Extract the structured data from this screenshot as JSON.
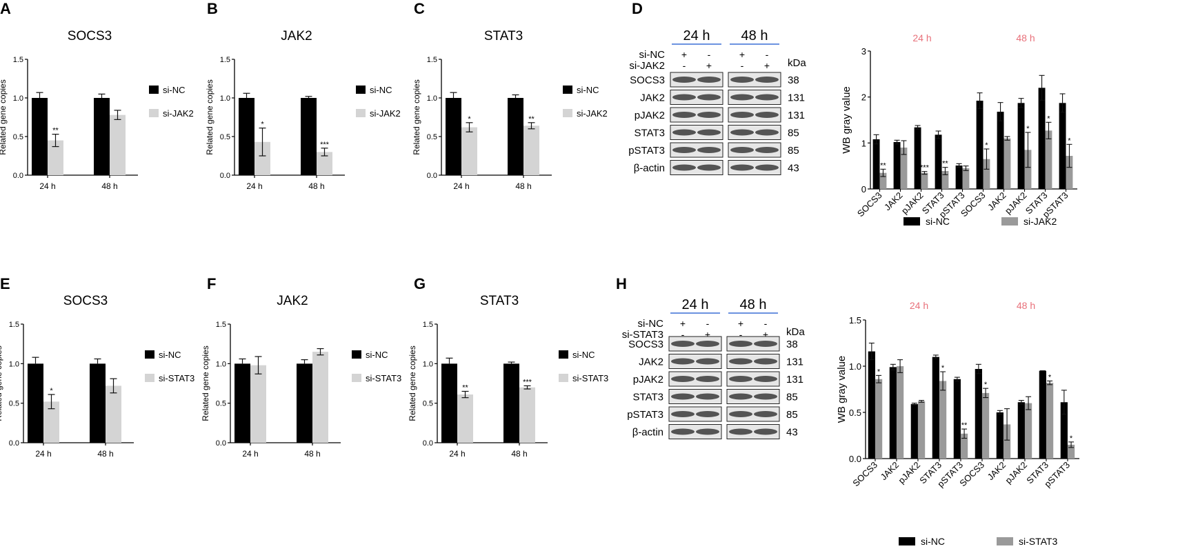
{
  "colors": {
    "si_nc": "#000000",
    "knockdown_qpcr": "#d4d4d4",
    "knockdown_wb": "#9a9a9a",
    "time_header_red": "#e8707a",
    "time_underline_blue": "#3a6ed6"
  },
  "top_row": {
    "legend_labels": [
      "si-NC",
      "si-JAK2"
    ],
    "blot": {
      "panel_letter": "D",
      "time_labels": [
        "24 h",
        "48 h"
      ],
      "condition_rows": [
        {
          "label": "si-NC",
          "marks": [
            "+",
            "-",
            "+",
            "-"
          ]
        },
        {
          "label": "si-JAK2",
          "marks": [
            "-",
            "+",
            "-",
            "+"
          ]
        }
      ],
      "kda_header": "kDa",
      "bands": [
        {
          "protein": "SOCS3",
          "kda": "38"
        },
        {
          "protein": "JAK2",
          "kda": "131"
        },
        {
          "protein": "pJAK2",
          "kda": "131"
        },
        {
          "protein": "STAT3",
          "kda": "85"
        },
        {
          "protein": "pSTAT3",
          "kda": "85"
        },
        {
          "protein": "β-actin",
          "kda": "43"
        }
      ]
    }
  },
  "bottom_row": {
    "legend_labels": [
      "si-NC",
      "si-STAT3"
    ],
    "blot": {
      "panel_letter": "H",
      "time_labels": [
        "24 h",
        "48 h"
      ],
      "condition_rows": [
        {
          "label": "si-NC",
          "marks": [
            "+",
            "-",
            "+",
            "-"
          ]
        },
        {
          "label": "si-STAT3",
          "marks": [
            "-",
            "+",
            "-",
            "+"
          ]
        }
      ],
      "kda_header": "kDa",
      "bands": [
        {
          "protein": "SOCS3",
          "kda": "38"
        },
        {
          "protein": "JAK2",
          "kda": "131"
        },
        {
          "protein": "pJAK2",
          "kda": "131"
        },
        {
          "protein": "STAT3",
          "kda": "85"
        },
        {
          "protein": "pSTAT3",
          "kda": "85"
        },
        {
          "protein": "β-actin",
          "kda": "43"
        }
      ]
    }
  },
  "chart_data": [
    {
      "panel": "A",
      "type": "bar",
      "title": "SOCS3",
      "ylabel": "Related gene copies",
      "ylim": [
        0,
        1.5
      ],
      "yticks": [
        "0.0",
        "0.5",
        "1.0",
        "1.5"
      ],
      "categories": [
        "24 h",
        "48 h"
      ],
      "series": [
        {
          "name": "si-NC",
          "values": [
            1.0,
            1.0
          ],
          "errors": [
            0.07,
            0.05
          ],
          "sig": [
            "",
            ""
          ]
        },
        {
          "name": "si-JAK2",
          "values": [
            0.45,
            0.78
          ],
          "errors": [
            0.08,
            0.06
          ],
          "sig": [
            "**",
            ""
          ]
        }
      ]
    },
    {
      "panel": "B",
      "type": "bar",
      "title": "JAK2",
      "ylabel": "Related gene copies",
      "ylim": [
        0,
        1.5
      ],
      "yticks": [
        "0.0",
        "0.5",
        "1.0",
        "1.5"
      ],
      "categories": [
        "24 h",
        "48 h"
      ],
      "series": [
        {
          "name": "si-NC",
          "values": [
            1.0,
            1.0
          ],
          "errors": [
            0.06,
            0.02
          ],
          "sig": [
            "",
            ""
          ]
        },
        {
          "name": "si-JAK2",
          "values": [
            0.43,
            0.3
          ],
          "errors": [
            0.18,
            0.05
          ],
          "sig": [
            "*",
            "***"
          ]
        }
      ]
    },
    {
      "panel": "C",
      "type": "bar",
      "title": "STAT3",
      "ylabel": "Related gene copies",
      "ylim": [
        0,
        1.5
      ],
      "yticks": [
        "0.0",
        "0.5",
        "1.0",
        "1.5"
      ],
      "categories": [
        "24 h",
        "48 h"
      ],
      "series": [
        {
          "name": "si-NC",
          "values": [
            1.0,
            1.0
          ],
          "errors": [
            0.07,
            0.04
          ],
          "sig": [
            "",
            ""
          ]
        },
        {
          "name": "si-JAK2",
          "values": [
            0.62,
            0.64
          ],
          "errors": [
            0.06,
            0.04
          ],
          "sig": [
            "*",
            "**"
          ]
        }
      ]
    },
    {
      "panel": "D",
      "type": "bar",
      "title": "",
      "ylabel": "WB gray value",
      "ylim": [
        0,
        3
      ],
      "yticks": [
        "0",
        "1",
        "2",
        "3"
      ],
      "time_headers": [
        "24 h",
        "48 h"
      ],
      "categories": [
        "SOCS3",
        "JAK2",
        "pJAK2",
        "STAT3",
        "pSTAT3",
        "SOCS3",
        "JAK2",
        "pJAK2",
        "STAT3",
        "pSTAT3"
      ],
      "series": [
        {
          "name": "si-NC",
          "values": [
            1.08,
            1.02,
            1.34,
            1.18,
            0.51,
            1.92,
            1.68,
            1.87,
            2.2,
            1.87
          ],
          "errors": [
            0.1,
            0.04,
            0.04,
            0.08,
            0.04,
            0.17,
            0.2,
            0.1,
            0.27,
            0.2
          ],
          "sig": [
            "",
            "",
            "",
            "",
            "",
            "",
            "",
            "",
            "",
            ""
          ]
        },
        {
          "name": "si-JAK2",
          "values": [
            0.35,
            0.9,
            0.35,
            0.39,
            0.45,
            0.65,
            1.1,
            0.85,
            1.27,
            0.72
          ],
          "errors": [
            0.08,
            0.15,
            0.03,
            0.08,
            0.05,
            0.22,
            0.04,
            0.38,
            0.18,
            0.25
          ],
          "sig": [
            "**",
            "",
            "***",
            "**",
            "",
            "*",
            "",
            "*",
            "*",
            "*"
          ]
        }
      ]
    },
    {
      "panel": "E",
      "type": "bar",
      "title": "SOCS3",
      "ylabel": "Related gene copies",
      "ylim": [
        0,
        1.5
      ],
      "yticks": [
        "0.0",
        "0.5",
        "1.0",
        "1.5"
      ],
      "categories": [
        "24 h",
        "48 h"
      ],
      "series": [
        {
          "name": "si-NC",
          "values": [
            1.0,
            1.0
          ],
          "errors": [
            0.08,
            0.06
          ],
          "sig": [
            "",
            ""
          ]
        },
        {
          "name": "si-STAT3",
          "values": [
            0.52,
            0.72
          ],
          "errors": [
            0.09,
            0.09
          ],
          "sig": [
            "*",
            ""
          ]
        }
      ]
    },
    {
      "panel": "F",
      "type": "bar",
      "title": "JAK2",
      "ylabel": "Related gene copies",
      "ylim": [
        0,
        1.5
      ],
      "yticks": [
        "0.0",
        "0.5",
        "1.0",
        "1.5"
      ],
      "categories": [
        "24 h",
        "48 h"
      ],
      "series": [
        {
          "name": "si-NC",
          "values": [
            1.0,
            1.0
          ],
          "errors": [
            0.06,
            0.05
          ],
          "sig": [
            "",
            ""
          ]
        },
        {
          "name": "si-STAT3",
          "values": [
            0.98,
            1.15
          ],
          "errors": [
            0.11,
            0.04
          ],
          "sig": [
            "",
            ""
          ]
        }
      ]
    },
    {
      "panel": "G",
      "type": "bar",
      "title": "STAT3",
      "ylabel": "Related gene copies",
      "ylim": [
        0,
        1.5
      ],
      "yticks": [
        "0.0",
        "0.5",
        "1.0",
        "1.5"
      ],
      "categories": [
        "24 h",
        "48 h"
      ],
      "series": [
        {
          "name": "si-NC",
          "values": [
            1.0,
            1.0
          ],
          "errors": [
            0.07,
            0.02
          ],
          "sig": [
            "",
            ""
          ]
        },
        {
          "name": "si-STAT3",
          "values": [
            0.61,
            0.7
          ],
          "errors": [
            0.04,
            0.02
          ],
          "sig": [
            "**",
            "***"
          ]
        }
      ]
    },
    {
      "panel": "H",
      "type": "bar",
      "title": "",
      "ylabel": "WB gray value",
      "ylim": [
        0,
        1.5
      ],
      "yticks": [
        "0.0",
        "0.5",
        "1.0",
        "1.5"
      ],
      "time_headers": [
        "24 h",
        "48 h"
      ],
      "categories": [
        "SOCS3",
        "JAK2",
        "pJAK2",
        "STAT3",
        "pSTAT3",
        "SOCS3",
        "JAK2",
        "pJAK2",
        "STAT3",
        "pSTAT3"
      ],
      "series": [
        {
          "name": "si-NC",
          "values": [
            1.16,
            0.99,
            0.59,
            1.1,
            0.86,
            0.97,
            0.5,
            0.61,
            0.95,
            0.61
          ],
          "errors": [
            0.09,
            0.03,
            0.01,
            0.02,
            0.02,
            0.05,
            0.02,
            0.02,
            0.0,
            0.13
          ],
          "sig": [
            "",
            "",
            "",
            "",
            "",
            "",
            "",
            "",
            "",
            ""
          ]
        },
        {
          "name": "si-STAT3",
          "values": [
            0.86,
            1.0,
            0.62,
            0.84,
            0.27,
            0.71,
            0.37,
            0.6,
            0.82,
            0.15
          ],
          "errors": [
            0.04,
            0.07,
            0.01,
            0.1,
            0.05,
            0.05,
            0.17,
            0.07,
            0.02,
            0.03
          ],
          "sig": [
            "*",
            "",
            "",
            "*",
            "**",
            "*",
            "",
            "",
            "*",
            "*"
          ]
        }
      ]
    }
  ]
}
